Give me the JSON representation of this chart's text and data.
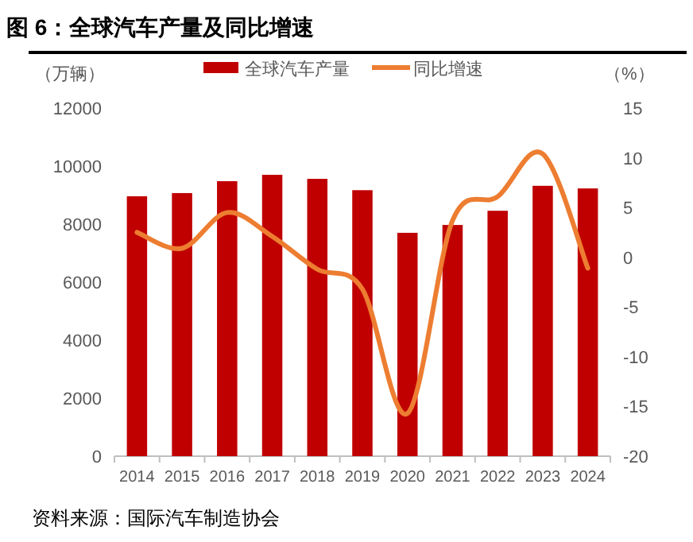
{
  "chart_data": {
    "type": "bar",
    "title": "图 6：全球汽车产量及同比增速",
    "ylabel": "（万辆）",
    "y2label": "（%）",
    "annotations": [
      "资料来源：国际汽车制造协会"
    ],
    "categories": [
      "2014",
      "2015",
      "2016",
      "2017",
      "2018",
      "2019",
      "2020",
      "2021",
      "2022",
      "2023",
      "2024"
    ],
    "series": [
      {
        "name": "全球汽车产量",
        "color": "#c00000",
        "values": [
          8960,
          9070,
          9480,
          9700,
          9560,
          9170,
          7700,
          7970,
          8460,
          9320,
          9230
        ]
      },
      {
        "name": "同比增速",
        "type": "line",
        "axis": "y2",
        "color": "#ed7d31",
        "values": [
          2.5,
          0.9,
          4.5,
          2.1,
          -1.2,
          -3.2,
          -15.7,
          3.7,
          6.1,
          10.4,
          -1.1
        ]
      }
    ],
    "ylim": [
      0,
      12000
    ],
    "yticks": [
      0,
      2000,
      4000,
      6000,
      8000,
      10000,
      12000
    ],
    "y2lim": [
      -20,
      15
    ],
    "y2ticks": [
      -20,
      -15,
      -10,
      -5,
      0,
      5,
      10,
      15
    ],
    "legend": "top",
    "grid": false
  }
}
